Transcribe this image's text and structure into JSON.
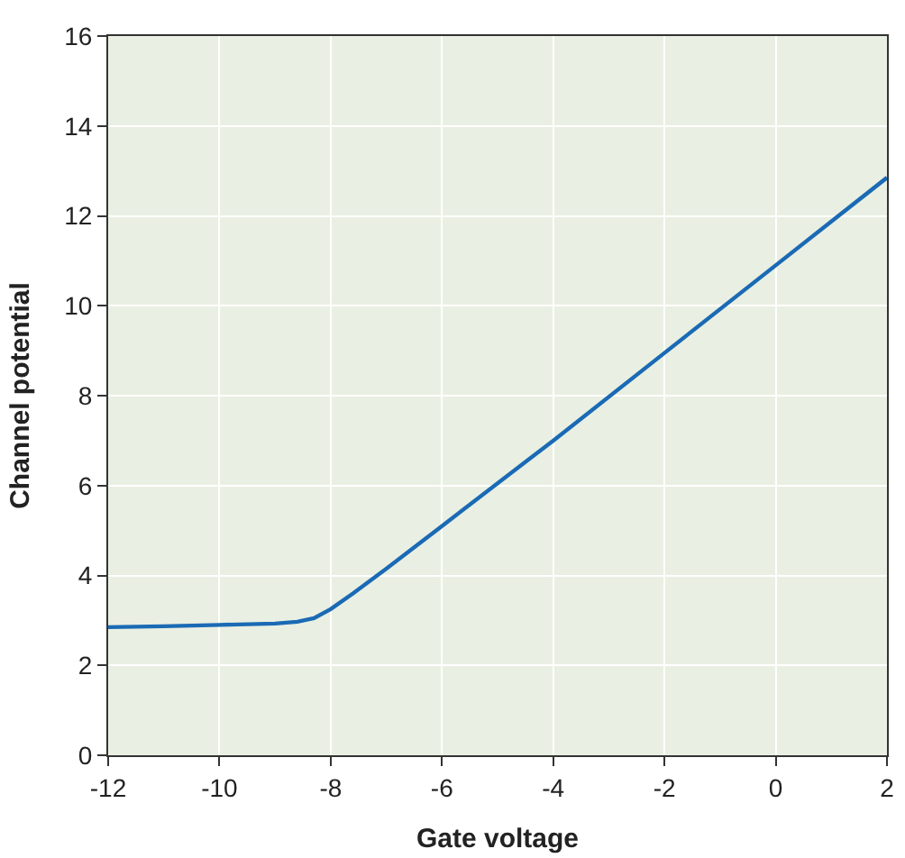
{
  "chart_data": {
    "type": "line",
    "xlabel": "Gate voltage",
    "ylabel": "Channel potential",
    "x": [
      -12,
      -11,
      -10,
      -9,
      -8.6,
      -8.3,
      -8,
      -7.6,
      -7,
      -6,
      -4,
      -2,
      0,
      2
    ],
    "series": [
      {
        "color": "#1a6ab5",
        "values": [
          2.85,
          2.87,
          2.9,
          2.93,
          2.97,
          3.05,
          3.25,
          3.6,
          4.15,
          5.1,
          7.0,
          8.95,
          10.9,
          12.85
        ]
      }
    ],
    "xlim": [
      -12,
      2
    ],
    "xticks": [
      -12,
      -10,
      -8,
      -6,
      -4,
      -2,
      0,
      2
    ],
    "ylim": [
      0,
      16
    ],
    "yticks": [
      0,
      2,
      4,
      6,
      8,
      10,
      12,
      14,
      16
    ],
    "grid": true,
    "marker": "none",
    "line_style": "solid"
  }
}
